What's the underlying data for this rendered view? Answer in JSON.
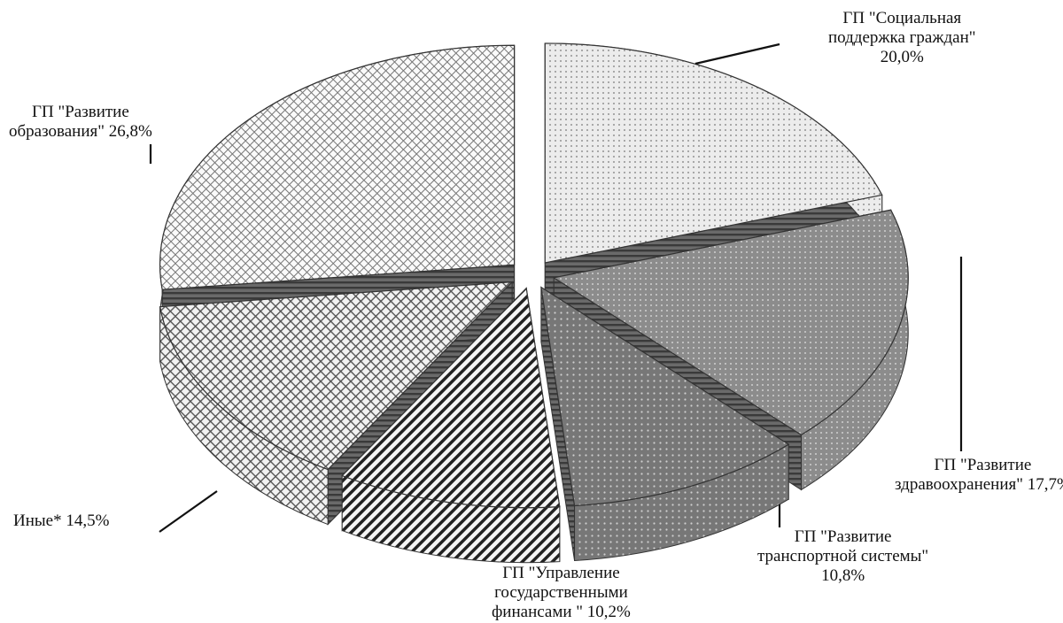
{
  "chart_data": {
    "type": "pie",
    "style": "3d-exploded",
    "values_unit": "%",
    "slices": [
      {
        "label_lines": [
          "ГП \"Социальная",
          "поддержка граждан\"",
          "20,0%"
        ],
        "value": 20.0,
        "pattern": "dots-light"
      },
      {
        "label_lines": [
          "ГП \"Развитие",
          "здравоохранения\"  17,7%"
        ],
        "value": 17.7,
        "pattern": "dots-dark"
      },
      {
        "label_lines": [
          "ГП \"Развитие",
          "транспортной  системы\"",
          "10,8%"
        ],
        "value": 10.8,
        "pattern": "dots-medium"
      },
      {
        "label_lines": [
          "ГП \"Управление",
          "государственными",
          "финансами \"  10,2%"
        ],
        "value": 10.2,
        "pattern": "diagonal-stripes"
      },
      {
        "label_lines": [
          "Иные*  14,5%"
        ],
        "value": 14.5,
        "pattern": "crosshatch-fine"
      },
      {
        "label_lines": [
          "ГП \"Развитие",
          "образования\"  26,8%"
        ],
        "value": 26.8,
        "pattern": "grid"
      }
    ],
    "title": "",
    "legend": "none"
  }
}
